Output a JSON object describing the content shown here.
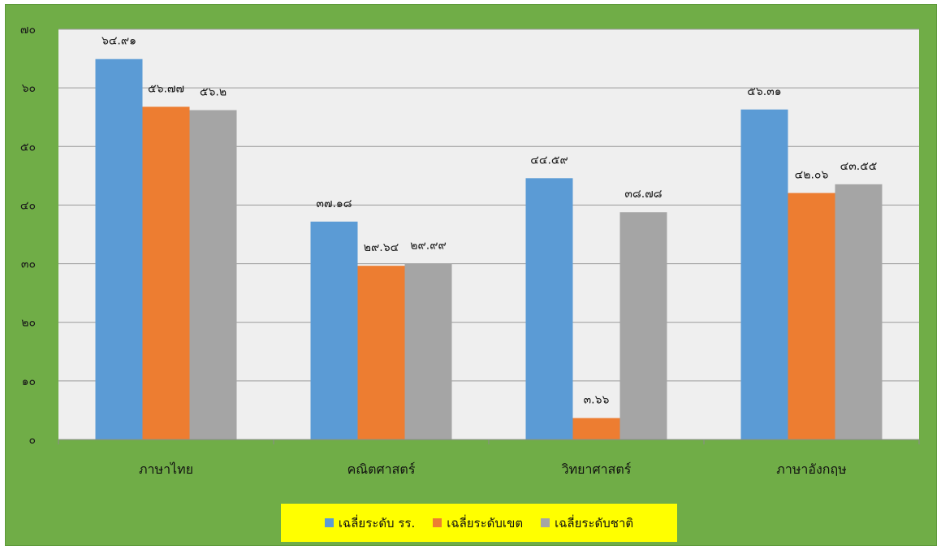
{
  "chart_data": {
    "type": "bar",
    "categories": [
      "ภาษาไทย",
      "คณิตศาสตร์",
      "วิทยาศาสตร์",
      "ภาษาอังกฤษ"
    ],
    "series": [
      {
        "name": "เฉลี่ยระดับ รร.",
        "color": "#5b9bd5",
        "values": [
          64.91,
          37.18,
          44.59,
          56.31
        ],
        "labels": [
          "๖๔.๙๑",
          "๓๗.๑๘",
          "๔๔.๕๙",
          "๕๖.๓๑"
        ]
      },
      {
        "name": "เฉลี่ยระดับเขต",
        "color": "#ed7d31",
        "values": [
          56.77,
          29.64,
          3.66,
          42.06
        ],
        "labels": [
          "๕๖.๗๗",
          "๒๙.๖๔",
          "๓.๖๖",
          "๔๒.๐๖"
        ]
      },
      {
        "name": "เฉลี่ยระดับชาติ",
        "color": "#a5a5a5",
        "values": [
          56.2,
          29.99,
          38.78,
          43.55
        ],
        "labels": [
          "๕๖.๒",
          "๒๙.๙๙",
          "๓๘.๗๘",
          "๔๓.๕๕"
        ]
      }
    ],
    "ylim": [
      0,
      70
    ],
    "y_ticks": [
      0,
      10,
      20,
      30,
      40,
      50,
      60,
      70
    ],
    "y_tick_labels": [
      "๐",
      "๑๐",
      "๒๐",
      "๓๐",
      "๔๐",
      "๕๐",
      "๖๐",
      "๗๐"
    ],
    "grid": true,
    "legend_position": "bottom-center",
    "title": "",
    "xlabel": "",
    "ylabel": ""
  },
  "colors": {
    "frame_background": "#70ad47",
    "plot_background": "#efefef",
    "legend_background": "#ffff00"
  }
}
